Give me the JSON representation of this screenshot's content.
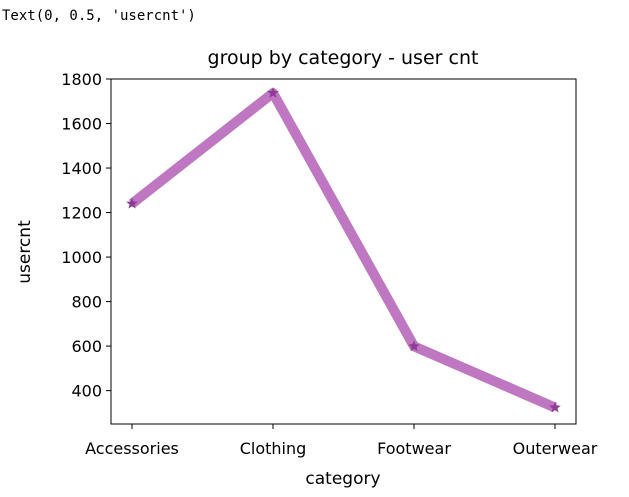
{
  "output_text": "Text(0, 0.5, 'usercnt')",
  "chart_data": {
    "type": "line",
    "title": "group by category - user cnt",
    "xlabel": "category",
    "ylabel": "usercnt",
    "categories": [
      "Accessories",
      "Clothing",
      "Footwear",
      "Outerwear"
    ],
    "series": [
      {
        "values": [
          1240,
          1737,
          599,
          324
        ]
      }
    ],
    "ylim": [
      250,
      1800
    ],
    "yticks": [
      400,
      600,
      800,
      1000,
      1200,
      1400,
      1600,
      1800
    ],
    "line_color": "#bf77c2",
    "marker_color": "#8e3d94",
    "marker": "star",
    "grid": false
  }
}
